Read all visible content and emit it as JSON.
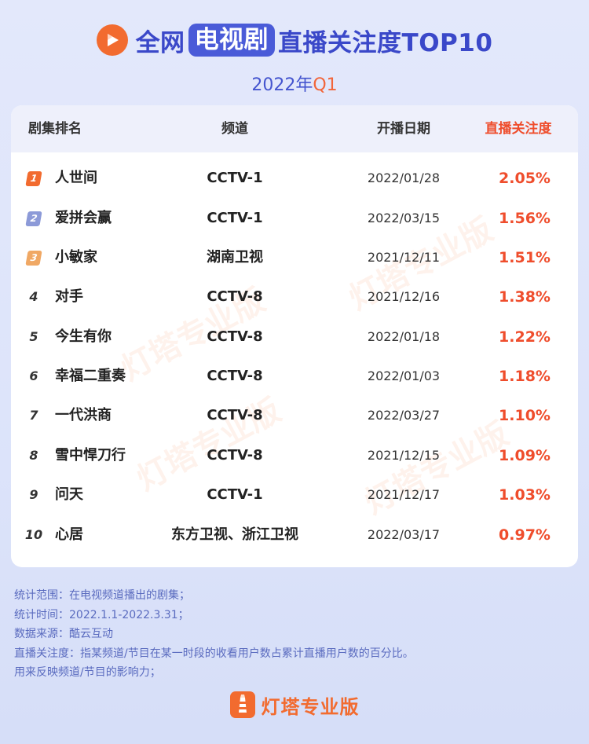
{
  "header": {
    "logo_icon": "play-triangle-icon",
    "title_prefix": "全网",
    "title_highlight": "电视剧",
    "title_suffix": "直播关注度TOP10",
    "subtitle_year": "2022年",
    "subtitle_quarter": "Q1"
  },
  "colors": {
    "brand_blue": "#3a48c9",
    "accent_orange": "#f26b2f",
    "value_red": "#ef4d2c",
    "rank1": "#f26b2f",
    "rank2": "#8c9ad8",
    "rank3": "#f0a864"
  },
  "table": {
    "columns": [
      "剧集排名",
      "频道",
      "开播日期",
      "直播关注度"
    ],
    "rows": [
      {
        "rank": "1",
        "name": "人世间",
        "channel": "CCTV-1",
        "date": "2022/01/28",
        "heat": "2.05%"
      },
      {
        "rank": "2",
        "name": "爱拼会赢",
        "channel": "CCTV-1",
        "date": "2022/03/15",
        "heat": "1.56%"
      },
      {
        "rank": "3",
        "name": "小敏家",
        "channel": "湖南卫视",
        "date": "2021/12/11",
        "heat": "1.51%"
      },
      {
        "rank": "4",
        "name": "对手",
        "channel": "CCTV-8",
        "date": "2021/12/16",
        "heat": "1.38%"
      },
      {
        "rank": "5",
        "name": "今生有你",
        "channel": "CCTV-8",
        "date": "2022/01/18",
        "heat": "1.22%"
      },
      {
        "rank": "6",
        "name": "幸福二重奏",
        "channel": "CCTV-8",
        "date": "2022/01/03",
        "heat": "1.18%"
      },
      {
        "rank": "7",
        "name": "一代洪商",
        "channel": "CCTV-8",
        "date": "2022/03/27",
        "heat": "1.10%"
      },
      {
        "rank": "8",
        "name": "雪中悍刀行",
        "channel": "CCTV-8",
        "date": "2021/12/15",
        "heat": "1.09%"
      },
      {
        "rank": "9",
        "name": "问天",
        "channel": "CCTV-1",
        "date": "2021/12/17",
        "heat": "1.03%"
      },
      {
        "rank": "10",
        "name": "心居",
        "channel": "东方卫视、浙江卫视",
        "date": "2022/03/17",
        "heat": "0.97%"
      }
    ]
  },
  "watermark": "灯塔专业版",
  "notes": [
    "统计范围：在电视频道播出的剧集；",
    "统计时间：2022.1.1-2022.3.31；",
    "数据来源：酷云互动",
    "直播关注度：指某频道/节目在某一时段的收看用户数占累计直播用户数的百分比。",
    "用来反映频道/节目的影响力；"
  ],
  "footer": {
    "logo_icon": "lighthouse-icon",
    "brand": "灯塔专业版"
  }
}
